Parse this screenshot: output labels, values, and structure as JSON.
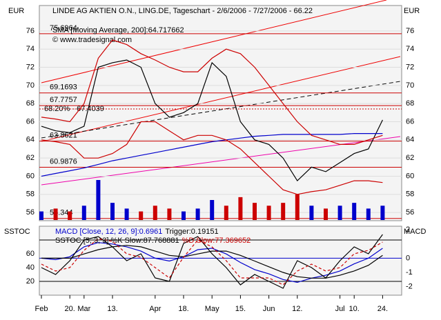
{
  "chart_data": [
    {
      "type": "line",
      "title": "LINDE AG AKTIEN O.N., LING.DE, Tageschart - 2/6/2006 - 7/27/2006 - 66.22",
      "annotation": "© www.tradesignal.com",
      "y_label": "EUR",
      "y2_label": "EUR",
      "categories": [
        "Feb",
        null,
        "20.",
        "Mar",
        null,
        "13.",
        null,
        null,
        "Apr",
        null,
        "18.",
        null,
        "May",
        null,
        "15.",
        null,
        "Jun",
        null,
        "12.",
        null,
        null,
        "Jul",
        "10.",
        null,
        "24."
      ],
      "ylim": [
        55.1,
        78.8
      ],
      "yticks": [
        56,
        58,
        60,
        62,
        64,
        66,
        68,
        70,
        72,
        74,
        76
      ],
      "grid": true,
      "series": [
        {
          "color": "#000000",
          "values": [
            65.5,
            65,
            64.8,
            65.5,
            72,
            72.5,
            72.8,
            72,
            68,
            66.5,
            67,
            68,
            72.5,
            71,
            66,
            64,
            63.5,
            62,
            59.5,
            61,
            60.5,
            61.5,
            62.5,
            63,
            66.2
          ]
        },
        {
          "name": "SMA [Moving Average, 200]:64.717662",
          "color": "#0000cc",
          "values": [
            60.0,
            60.3,
            60.6,
            60.9,
            61.3,
            61.7,
            62.0,
            62.3,
            62.6,
            62.9,
            63.2,
            63.5,
            63.8,
            64.0,
            64.2,
            64.4,
            64.5,
            64.6,
            64.6,
            64.6,
            64.6,
            64.6,
            64.7,
            64.7,
            64.7
          ]
        },
        {
          "color": "#cc0000",
          "values": [
            66.5,
            66.3,
            66,
            68,
            73,
            75,
            74.5,
            73.5,
            72.8,
            72,
            71.5,
            71.5,
            73,
            74,
            73.5,
            72,
            70,
            68,
            66,
            64.5,
            64,
            63.5,
            63.5,
            64,
            64.5
          ]
        },
        {
          "color": "#cc0000",
          "values": [
            64,
            63.8,
            63.5,
            62,
            62,
            62.5,
            63.5,
            66,
            66,
            65,
            64,
            64.5,
            64.5,
            64,
            63,
            61.5,
            60,
            58.5,
            58,
            58.3,
            58.5,
            59,
            59.5,
            59.5,
            59.3
          ]
        }
      ],
      "volume": [
        3,
        4,
        3,
        5,
        14,
        6,
        4,
        3,
        5,
        4,
        3,
        4,
        7,
        5,
        8,
        6,
        5,
        6,
        9,
        5,
        4,
        5,
        6,
        4,
        5
      ],
      "volume_colors": [
        "#0000cc",
        "#cc0000"
      ],
      "levels": [
        75.6964,
        69.1693,
        67.7757,
        63.8621,
        60.9876,
        55.344
      ],
      "level_color": "#cc0000",
      "fib_label": "68.20% - 67.4039",
      "fib_level": 67.4039
    },
    {
      "type": "line",
      "y_label": "SSTOC",
      "y2_label": "MACD",
      "ylim": [
        0,
        100
      ],
      "yticks": [
        60,
        40,
        20
      ],
      "hlines": [
        80,
        20
      ],
      "y2lim": [
        -2.6,
        2.25
      ],
      "y2ticks": [
        2,
        0,
        -1,
        -2
      ],
      "y2_hlines": [
        0
      ],
      "series": [
        {
          "name": "MACD [Close, 12, 26, 9]:0.6961",
          "axis": "y2",
          "color": "#0000cc",
          "values": [
            0,
            -0.1,
            0.1,
            0.8,
            1.1,
            1.0,
            0.8,
            0.5,
            0,
            -0.2,
            0.1,
            0.6,
            0.7,
            0.3,
            -0.3,
            -0.8,
            -1.1,
            -1.5,
            -1.7,
            -1.4,
            -1.2,
            -0.9,
            -0.4,
            0.0,
            0.7
          ]
        },
        {
          "name": "Trigger:0.19151",
          "axis": "y2",
          "color": "#000000",
          "values": [
            0,
            0,
            0,
            0.3,
            0.6,
            0.8,
            0.9,
            0.8,
            0.5,
            0.2,
            0.1,
            0.3,
            0.5,
            0.5,
            0.2,
            -0.2,
            -0.6,
            -1.0,
            -1.3,
            -1.4,
            -1.4,
            -1.2,
            -0.9,
            -0.5,
            0.2
          ]
        },
        {
          "name": "SSTOC [5, 3, 3] %K Slow:87.768881",
          "color": "#000000",
          "values": [
            40,
            30,
            50,
            80,
            85,
            70,
            50,
            60,
            25,
            20,
            75,
            85,
            60,
            40,
            15,
            30,
            20,
            10,
            50,
            40,
            25,
            50,
            70,
            60,
            88
          ]
        },
        {
          "name": "%D Slow:77.369652",
          "color": "#cc0000",
          "dashed": true,
          "values": [
            45,
            35,
            40,
            65,
            82,
            78,
            60,
            55,
            40,
            25,
            55,
            80,
            70,
            50,
            25,
            25,
            25,
            15,
            35,
            45,
            35,
            40,
            60,
            65,
            77
          ]
        }
      ]
    }
  ]
}
